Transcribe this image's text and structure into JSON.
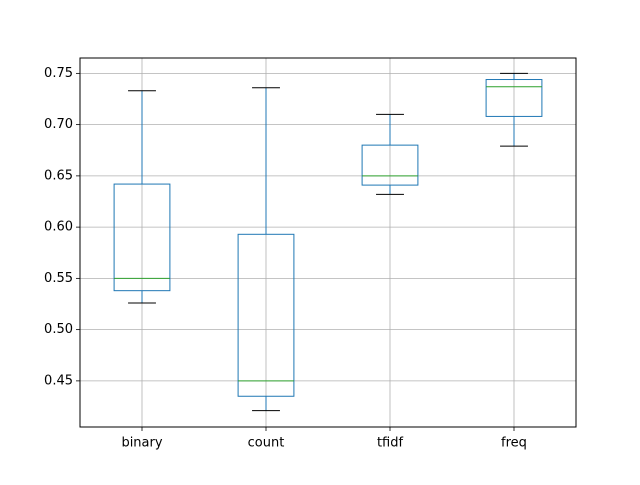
{
  "chart_data": {
    "type": "box",
    "title": "",
    "xlabel": "",
    "ylabel": "",
    "ylim": [
      0.405,
      0.765
    ],
    "yticks": [
      0.45,
      0.5,
      0.55,
      0.6,
      0.65,
      0.7,
      0.75
    ],
    "ytick_labels": [
      "0.45",
      "0.50",
      "0.55",
      "0.60",
      "0.65",
      "0.70",
      "0.75"
    ],
    "grid": true,
    "categories": [
      "binary",
      "count",
      "tfidf",
      "freq"
    ],
    "boxes": [
      {
        "label": "binary",
        "whislo": 0.526,
        "q1": 0.538,
        "med": 0.55,
        "q3": 0.642,
        "whishi": 0.733
      },
      {
        "label": "count",
        "whislo": 0.421,
        "q1": 0.435,
        "med": 0.45,
        "q3": 0.593,
        "whishi": 0.736
      },
      {
        "label": "tfidf",
        "whislo": 0.632,
        "q1": 0.641,
        "med": 0.65,
        "q3": 0.68,
        "whishi": 0.71
      },
      {
        "label": "freq",
        "whislo": 0.679,
        "q1": 0.708,
        "med": 0.737,
        "q3": 0.744,
        "whishi": 0.75
      }
    ],
    "colors": {
      "box": "#1f77b4",
      "median": "#2ca02c",
      "cap": "#000000",
      "grid": "#b0b0b0"
    }
  }
}
